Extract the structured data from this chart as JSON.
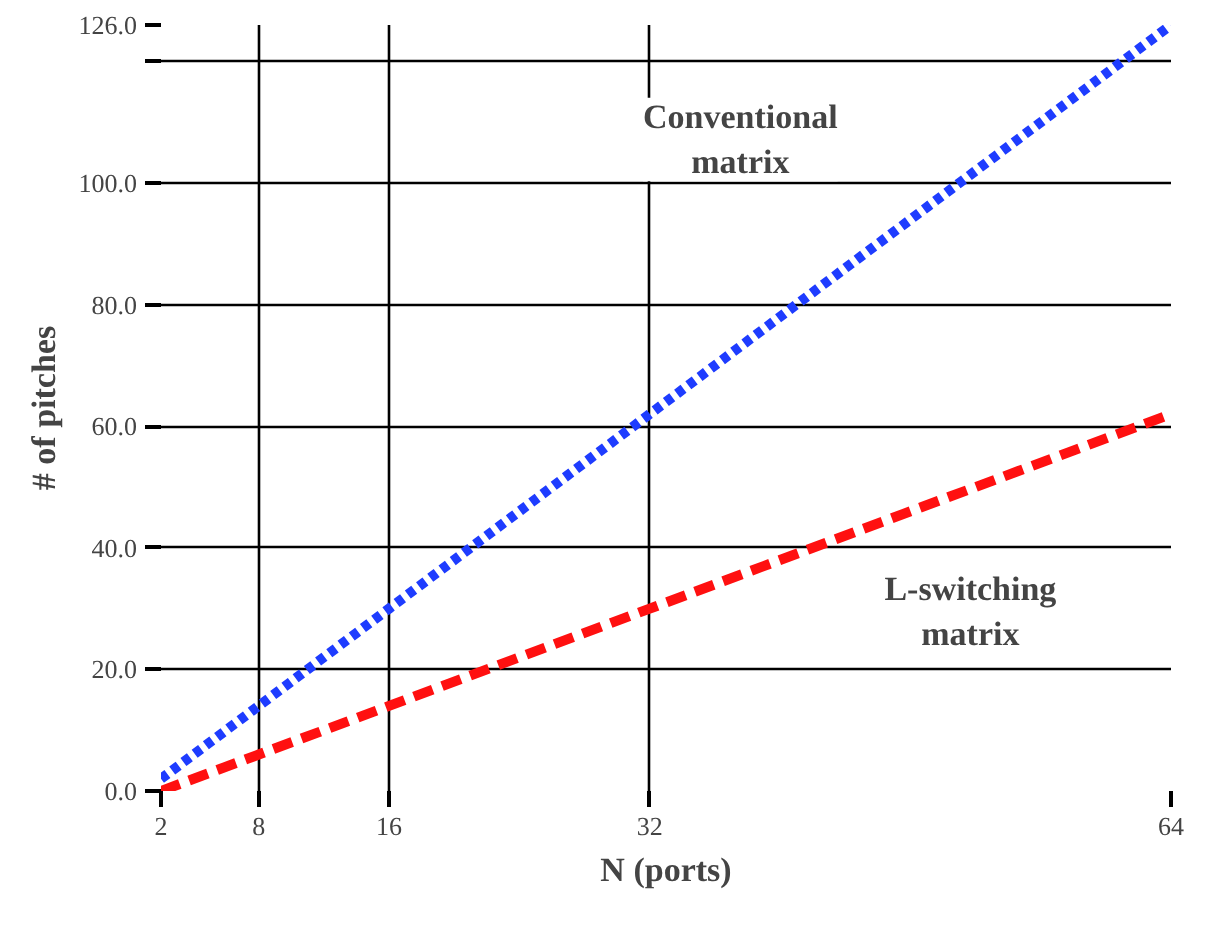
{
  "chart_data": {
    "type": "line",
    "xlabel": "N (ports)",
    "ylabel": "# of pitches",
    "x": [
      2,
      8,
      16,
      32,
      64
    ],
    "series": [
      {
        "name": "Conventional\nmatrix",
        "color": "#1e3cff",
        "values": [
          2,
          14,
          30,
          62,
          126
        ],
        "line_style": "dotted"
      },
      {
        "name": "L-switching\nmatrix",
        "color": "#ff1010",
        "values": [
          0,
          6,
          14,
          30,
          62
        ],
        "line_style": "dashed"
      }
    ],
    "xlim": [
      2,
      64
    ],
    "ylim": [
      0,
      126
    ],
    "xticks": [
      2,
      8,
      16,
      32,
      64
    ],
    "yticks": [
      {
        "value": 0,
        "label": "0.0"
      },
      {
        "value": 20,
        "label": "20.0"
      },
      {
        "value": 40,
        "label": "40.0"
      },
      {
        "value": 60,
        "label": "60.0"
      },
      {
        "value": 80,
        "label": "80.0"
      },
      {
        "value": 100,
        "label": "100.0"
      },
      {
        "value": 120,
        "label": null
      },
      {
        "value": 126,
        "label": "126.0"
      }
    ],
    "grid": true,
    "marker": "none"
  }
}
